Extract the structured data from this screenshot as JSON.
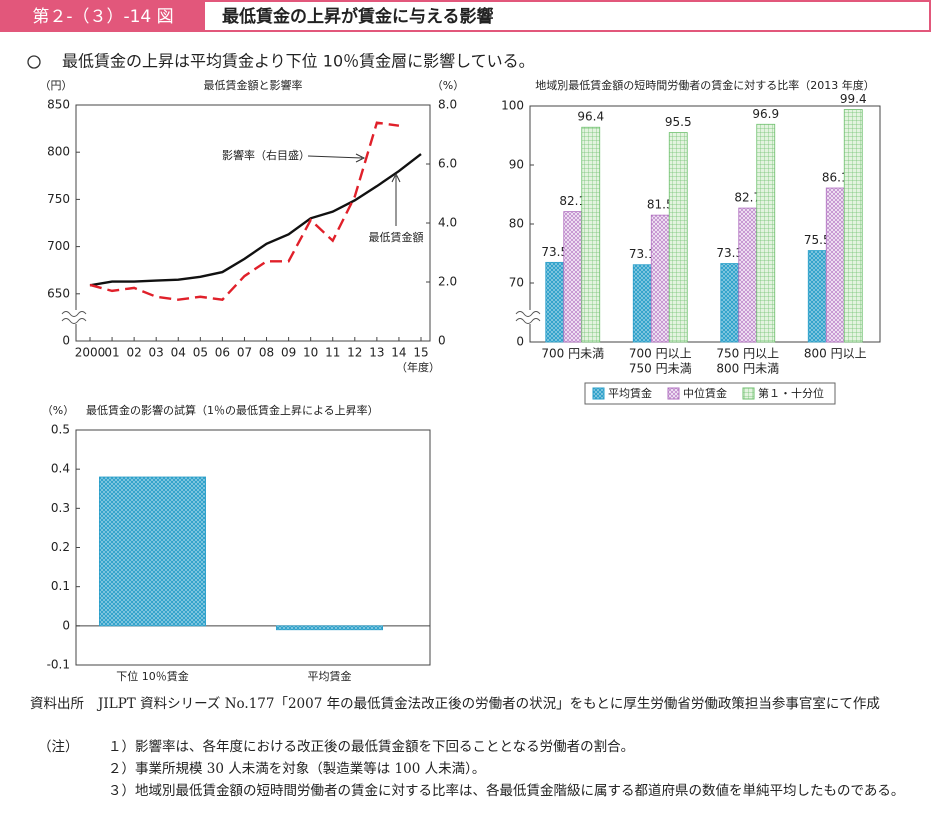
{
  "header": {
    "label": "第２-（３）-14 図",
    "title": "最低賃金の上昇が賃金に与える影響"
  },
  "subtitle": "最低賃金の上昇は平均賃金より下位 10％賃金層に影響している。",
  "chart_data": [
    {
      "type": "line",
      "title": "最低賃金額と影響率",
      "y_unit": "（円）",
      "y2_unit": "（%）",
      "x_unit": "（年度）",
      "categories": [
        "2000",
        "01",
        "02",
        "03",
        "04",
        "05",
        "06",
        "07",
        "08",
        "09",
        "10",
        "11",
        "12",
        "13",
        "14",
        "15"
      ],
      "series": [
        {
          "name": "最低賃金額",
          "color": "#111111",
          "axis": "y",
          "values": [
            659,
            663,
            663,
            664,
            665,
            668,
            673,
            687,
            703,
            713,
            730,
            737,
            749,
            764,
            780,
            798
          ]
        },
        {
          "name": "影響率（右目盛）",
          "color": "#e0202a",
          "axis": "y2",
          "dashed": true,
          "values": [
            1.9,
            1.7,
            1.8,
            1.5,
            1.4,
            1.5,
            1.4,
            2.2,
            2.7,
            2.7,
            4.1,
            3.4,
            4.9,
            7.4,
            7.3,
            null
          ]
        }
      ],
      "ylim": [
        0,
        850
      ],
      "yticks": [
        0,
        650,
        700,
        750,
        800,
        850
      ],
      "axis_break": true,
      "y2lim": [
        0,
        8
      ],
      "y2ticks": [
        {
          "value": 0,
          "label": "0"
        },
        {
          "value": 2,
          "label": "2.0"
        },
        {
          "value": 4,
          "label": "4.0"
        },
        {
          "value": 6,
          "label": "6.0"
        },
        {
          "value": 8,
          "label": "8.0"
        }
      ]
    },
    {
      "type": "grouped_bar",
      "title": "地域別最低賃金額の短時間労働者の賃金に対する比率（2013 年度）",
      "categories": [
        [
          "700 円未満"
        ],
        [
          "700 円以上",
          "750 円未満"
        ],
        [
          "750 円以上",
          "800 円未満"
        ],
        [
          "800 円以上"
        ]
      ],
      "series": [
        {
          "name": "平均賃金",
          "color": "#2a9fc9",
          "values": [
            73.5,
            73.1,
            73.3,
            75.5
          ]
        },
        {
          "name": "中位賃金",
          "color": "#b070c0",
          "values": [
            82.1,
            81.5,
            82.7,
            86.1
          ]
        },
        {
          "name": "第１・十分位",
          "color": "#6cbf6c",
          "values": [
            96.4,
            95.5,
            96.9,
            99.4
          ]
        }
      ],
      "ylim": [
        0,
        100
      ],
      "yticks": [
        0,
        70,
        80,
        90,
        100
      ],
      "axis_break": true,
      "legend": "bottom"
    },
    {
      "type": "bar",
      "title": "最低賃金の影響の試算（1％の最低賃金上昇による上昇率）",
      "y_unit": "（%）",
      "categories": [
        "下位 10％賃金",
        "平均賃金"
      ],
      "values": [
        0.38,
        -0.01
      ],
      "color": "#2a9fc9",
      "ylim": [
        -0.1,
        0.5
      ],
      "yticks": [
        -0.1,
        0,
        0.1,
        0.2,
        0.3,
        0.4,
        0.5
      ]
    }
  ],
  "source": {
    "label": "資料出所",
    "text": "JILPT 資料シリーズ No.177「2007 年の最低賃金法改正後の労働者の状況」をもとに厚生労働省労働政策担当参事官室にて作成"
  },
  "notes": {
    "label": "（注）",
    "items": [
      "１）影響率は、各年度における改正後の最低賃金額を下回ることとなる労働者の割合。",
      "２）事業所規模 30 人未満を対象（製造業等は 100 人未満）。",
      "３）地域別最低賃金額の短時間労働者の賃金に対する比率は、各最低賃金階級に属する都道府県の数値を単純平均したものである。"
    ]
  }
}
